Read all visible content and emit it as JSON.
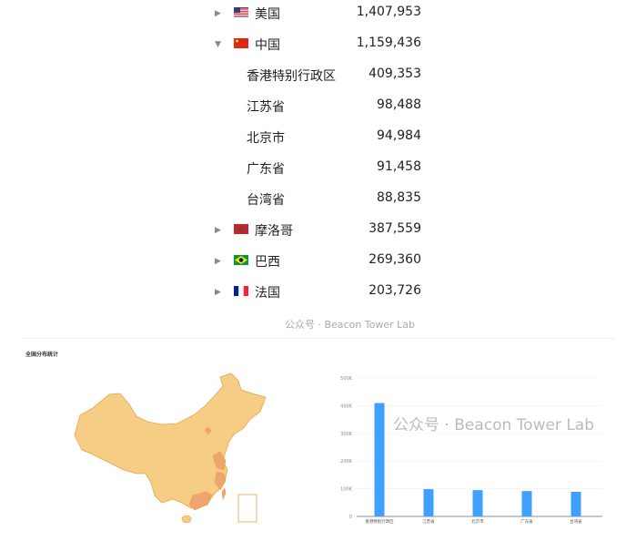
{
  "countries": [
    {
      "name": "美国",
      "value": "1,407,953",
      "expanded": false,
      "flag": "us"
    },
    {
      "name": "中国",
      "value": "1,159,436",
      "expanded": true,
      "flag": "cn",
      "children": [
        {
          "name": "香港特别行政区",
          "value": "409,353"
        },
        {
          "name": "江苏省",
          "value": "98,488"
        },
        {
          "name": "北京市",
          "value": "94,984"
        },
        {
          "name": "广东省",
          "value": "91,458"
        },
        {
          "name": "台湾省",
          "value": "88,835"
        }
      ]
    },
    {
      "name": "摩洛哥",
      "value": "387,559",
      "expanded": false,
      "flag": "ma"
    },
    {
      "name": "巴西",
      "value": "269,360",
      "expanded": false,
      "flag": "br"
    },
    {
      "name": "法国",
      "value": "203,726",
      "expanded": false,
      "flag": "fr"
    }
  ],
  "watermark": "公众号 · Beacon Tower Lab",
  "map_title": "全国分布统计",
  "colors": {
    "bar": "#3fa0ff",
    "map_fill": "#f5cd85",
    "map_high": "#efa66e",
    "map_stroke": "#f0a04a"
  },
  "chart_data": {
    "type": "bar",
    "categories": [
      "香港特别行政区",
      "江苏省",
      "北京市",
      "广东省",
      "台湾省"
    ],
    "values": [
      409353,
      98488,
      94984,
      91458,
      88835
    ],
    "yticks": [
      "0",
      "100K",
      "200K",
      "300K",
      "400K",
      "500K"
    ],
    "ylim": [
      0,
      500000
    ],
    "grid": true
  }
}
